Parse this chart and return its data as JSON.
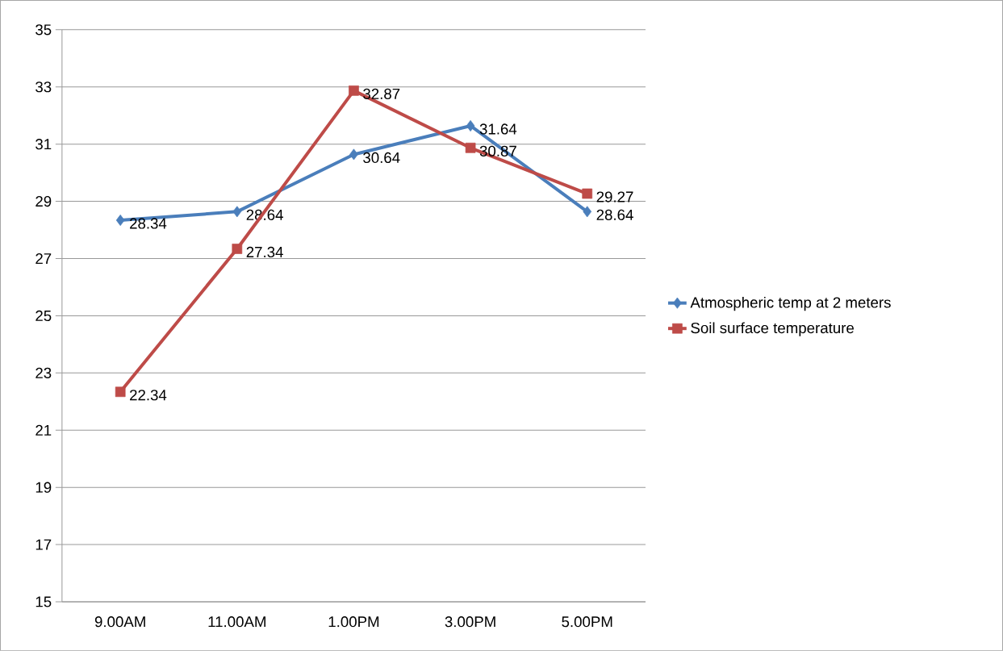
{
  "chart_data": {
    "type": "line",
    "categories": [
      "9.00AM",
      "11.00AM",
      "1.00PM",
      "3.00PM",
      "5.00PM"
    ],
    "series": [
      {
        "name": "Atmospheric temp at 2 meters",
        "color": "#4a7ebb",
        "marker": "diamond",
        "values": [
          28.34,
          28.64,
          30.64,
          31.64,
          28.64
        ]
      },
      {
        "name": "Soil surface temperature",
        "color": "#be4b48",
        "marker": "square",
        "values": [
          22.34,
          27.34,
          32.87,
          30.87,
          29.27
        ]
      }
    ],
    "ylim": [
      15,
      35
    ],
    "yticks": [
      15,
      17,
      19,
      21,
      23,
      25,
      27,
      29,
      31,
      33,
      35
    ],
    "grid": "y",
    "legend": "right",
    "data_labels": true
  }
}
